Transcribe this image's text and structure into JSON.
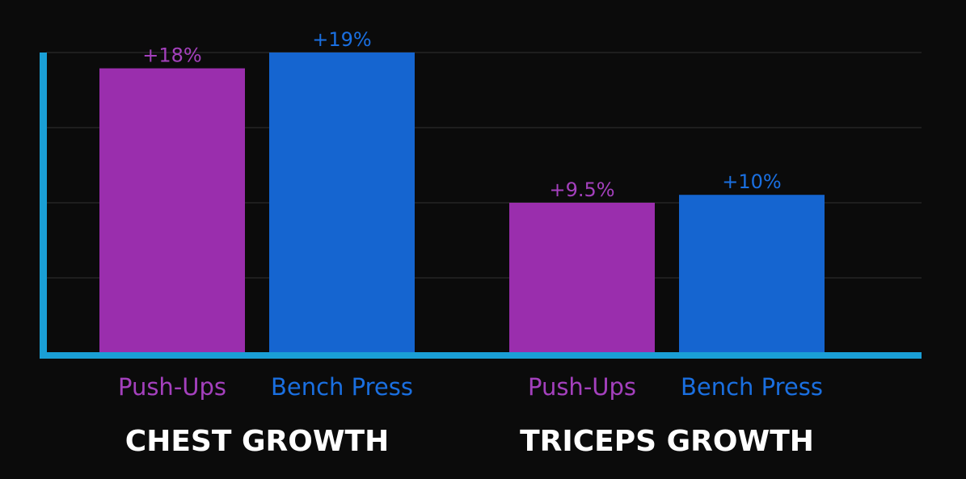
{
  "colors": {
    "background": "#0b0b0b",
    "axis": "#1a9fd6",
    "grid": "#2a2a2a",
    "push_ups": "#9a2ead",
    "bench_press": "#1565d0",
    "push_ups_text": "#a440bd",
    "bench_press_text": "#1a6fe0",
    "group_text": "#ffffff"
  },
  "chart_data": {
    "type": "bar",
    "title": "",
    "xlabel": "",
    "ylabel": "",
    "ylim": [
      0,
      19
    ],
    "grid": true,
    "groups": [
      {
        "name": "CHEST GROWTH",
        "bars": [
          {
            "category": "Push-Ups",
            "value": 18,
            "label": "+18%"
          },
          {
            "category": "Bench Press",
            "value": 19,
            "label": "+19%"
          }
        ]
      },
      {
        "name": "TRICEPS GROWTH",
        "bars": [
          {
            "category": "Push-Ups",
            "value": 9.5,
            "label": "+9.5%"
          },
          {
            "category": "Bench Press",
            "value": 10,
            "label": "+10%"
          }
        ]
      }
    ]
  }
}
